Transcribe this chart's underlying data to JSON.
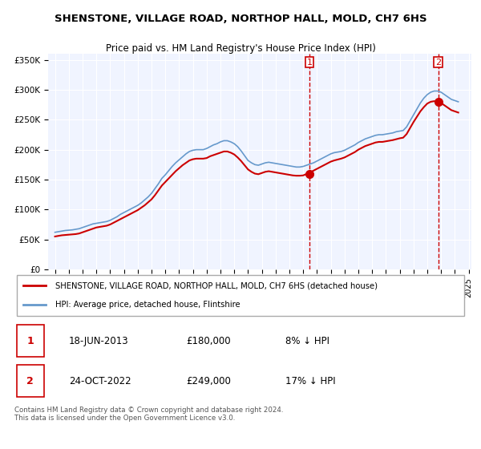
{
  "title": "SHENSTONE, VILLAGE ROAD, NORTHOP HALL, MOLD, CH7 6HS",
  "subtitle": "Price paid vs. HM Land Registry's House Price Index (HPI)",
  "ylabel": "",
  "background_color": "#ffffff",
  "plot_bg_color": "#f0f4ff",
  "grid_color": "#ffffff",
  "legend_label_property": "SHENSTONE, VILLAGE ROAD, NORTHOP HALL, MOLD, CH7 6HS (detached house)",
  "legend_label_hpi": "HPI: Average price, detached house, Flintshire",
  "property_color": "#cc0000",
  "hpi_color": "#6699cc",
  "transaction1_date": "18-JUN-2013",
  "transaction1_price": 180000,
  "transaction1_pct": "8% ↓ HPI",
  "transaction2_date": "24-OCT-2022",
  "transaction2_price": 249000,
  "transaction2_pct": "17% ↓ HPI",
  "footnote": "Contains HM Land Registry data © Crown copyright and database right 2024.\nThis data is licensed under the Open Government Licence v3.0.",
  "ylim_max": 360000,
  "yticks": [
    0,
    50000,
    100000,
    150000,
    200000,
    250000,
    300000,
    350000
  ],
  "ytick_labels": [
    "£0",
    "£50K",
    "£100K",
    "£150K",
    "£200K",
    "£250K",
    "£300K",
    "£350K"
  ],
  "hpi_years": [
    1995.0,
    1995.25,
    1995.5,
    1995.75,
    1996.0,
    1996.25,
    1996.5,
    1996.75,
    1997.0,
    1997.25,
    1997.5,
    1997.75,
    1998.0,
    1998.25,
    1998.5,
    1998.75,
    1999.0,
    1999.25,
    1999.5,
    1999.75,
    2000.0,
    2000.25,
    2000.5,
    2000.75,
    2001.0,
    2001.25,
    2001.5,
    2001.75,
    2002.0,
    2002.25,
    2002.5,
    2002.75,
    2003.0,
    2003.25,
    2003.5,
    2003.75,
    2004.0,
    2004.25,
    2004.5,
    2004.75,
    2005.0,
    2005.25,
    2005.5,
    2005.75,
    2006.0,
    2006.25,
    2006.5,
    2006.75,
    2007.0,
    2007.25,
    2007.5,
    2007.75,
    2008.0,
    2008.25,
    2008.5,
    2008.75,
    2009.0,
    2009.25,
    2009.5,
    2009.75,
    2010.0,
    2010.25,
    2010.5,
    2010.75,
    2011.0,
    2011.25,
    2011.5,
    2011.75,
    2012.0,
    2012.25,
    2012.5,
    2012.75,
    2013.0,
    2013.25,
    2013.5,
    2013.75,
    2014.0,
    2014.25,
    2014.5,
    2014.75,
    2015.0,
    2015.25,
    2015.5,
    2015.75,
    2016.0,
    2016.25,
    2016.5,
    2016.75,
    2017.0,
    2017.25,
    2017.5,
    2017.75,
    2018.0,
    2018.25,
    2018.5,
    2018.75,
    2019.0,
    2019.25,
    2019.5,
    2019.75,
    2020.0,
    2020.25,
    2020.5,
    2020.75,
    2021.0,
    2021.25,
    2021.5,
    2021.75,
    2022.0,
    2022.25,
    2022.5,
    2022.75,
    2023.0,
    2023.25,
    2023.5,
    2023.75,
    2024.0,
    2024.25
  ],
  "hpi_values": [
    62000,
    63000,
    64000,
    65000,
    65500,
    66000,
    67000,
    68000,
    70000,
    72000,
    74000,
    76000,
    77000,
    78000,
    79000,
    80000,
    82000,
    85000,
    88000,
    92000,
    95000,
    98000,
    101000,
    104000,
    107000,
    111000,
    116000,
    121000,
    127000,
    135000,
    143000,
    152000,
    158000,
    165000,
    172000,
    178000,
    183000,
    188000,
    193000,
    197000,
    199000,
    200000,
    200000,
    200000,
    202000,
    205000,
    208000,
    210000,
    213000,
    215000,
    215000,
    213000,
    210000,
    205000,
    198000,
    190000,
    182000,
    178000,
    175000,
    174000,
    176000,
    178000,
    179000,
    178000,
    177000,
    176000,
    175000,
    174000,
    173000,
    172000,
    171000,
    171000,
    172000,
    174000,
    176000,
    178000,
    181000,
    184000,
    187000,
    190000,
    193000,
    195000,
    196000,
    197000,
    199000,
    202000,
    205000,
    208000,
    212000,
    215000,
    218000,
    220000,
    222000,
    224000,
    225000,
    225000,
    226000,
    227000,
    228000,
    230000,
    231000,
    232000,
    238000,
    248000,
    258000,
    268000,
    278000,
    286000,
    292000,
    296000,
    298000,
    298000,
    296000,
    292000,
    288000,
    284000,
    282000,
    280000
  ],
  "property_years": [
    1995.0,
    1995.25,
    1995.5,
    1995.75,
    1996.0,
    1996.25,
    1996.5,
    1996.75,
    1997.0,
    1997.25,
    1997.5,
    1997.75,
    1998.0,
    1998.25,
    1998.5,
    1998.75,
    1999.0,
    1999.25,
    1999.5,
    1999.75,
    2000.0,
    2000.25,
    2000.5,
    2000.75,
    2001.0,
    2001.25,
    2001.5,
    2001.75,
    2002.0,
    2002.25,
    2002.5,
    2002.75,
    2003.0,
    2003.25,
    2003.5,
    2003.75,
    2004.0,
    2004.25,
    2004.5,
    2004.75,
    2005.0,
    2005.25,
    2005.5,
    2005.75,
    2006.0,
    2006.25,
    2006.5,
    2006.75,
    2007.0,
    2007.25,
    2007.5,
    2007.75,
    2008.0,
    2008.25,
    2008.5,
    2008.75,
    2009.0,
    2009.25,
    2009.5,
    2009.75,
    2010.0,
    2010.25,
    2010.5,
    2010.75,
    2011.0,
    2011.25,
    2011.5,
    2011.75,
    2012.0,
    2012.25,
    2012.5,
    2012.75,
    2013.0,
    2013.25,
    2013.5,
    2013.75,
    2014.0,
    2014.25,
    2014.5,
    2014.75,
    2015.0,
    2015.25,
    2015.5,
    2015.75,
    2016.0,
    2016.25,
    2016.5,
    2016.75,
    2017.0,
    2017.25,
    2017.5,
    2017.75,
    2018.0,
    2018.25,
    2018.5,
    2018.75,
    2019.0,
    2019.25,
    2019.5,
    2019.75,
    2020.0,
    2020.25,
    2020.5,
    2020.75,
    2021.0,
    2021.25,
    2021.5,
    2021.75,
    2022.0,
    2022.25,
    2022.5,
    2022.75,
    2023.0,
    2023.25,
    2023.5,
    2023.75,
    2024.0,
    2024.25
  ],
  "property_values": [
    55000,
    56000,
    57000,
    57500,
    58000,
    58500,
    59000,
    60000,
    62000,
    64000,
    66000,
    68000,
    70000,
    71000,
    72000,
    73000,
    75000,
    78000,
    81000,
    84000,
    87000,
    90000,
    93000,
    96000,
    99000,
    103000,
    107000,
    112000,
    117000,
    124000,
    132000,
    140000,
    146000,
    152000,
    158000,
    164000,
    169000,
    174000,
    178000,
    182000,
    184000,
    185000,
    185000,
    185000,
    186000,
    189000,
    191000,
    193000,
    195000,
    197000,
    197000,
    195000,
    192000,
    187000,
    181000,
    174000,
    167000,
    163000,
    160000,
    159000,
    161000,
    163000,
    164000,
    163000,
    162000,
    161000,
    160000,
    159000,
    158000,
    157000,
    156500,
    156500,
    157000,
    159500,
    162000,
    165000,
    168000,
    171000,
    174000,
    177000,
    180000,
    182000,
    183500,
    185000,
    187000,
    190000,
    193000,
    196000,
    200000,
    203000,
    206000,
    208000,
    210000,
    212000,
    213000,
    213000,
    214000,
    215000,
    216000,
    217500,
    219000,
    220000,
    226000,
    236000,
    246000,
    255000,
    264000,
    271000,
    277000,
    280000,
    281000,
    280000,
    278000,
    274000,
    270000,
    266000,
    264000,
    262000
  ],
  "transaction1_year": 2013.46,
  "transaction2_year": 2022.8,
  "xtick_years": [
    1995,
    1996,
    1997,
    1998,
    1999,
    2000,
    2001,
    2002,
    2003,
    2004,
    2005,
    2006,
    2007,
    2008,
    2009,
    2010,
    2011,
    2012,
    2013,
    2014,
    2015,
    2016,
    2017,
    2018,
    2019,
    2020,
    2021,
    2022,
    2023,
    2024,
    2025
  ]
}
